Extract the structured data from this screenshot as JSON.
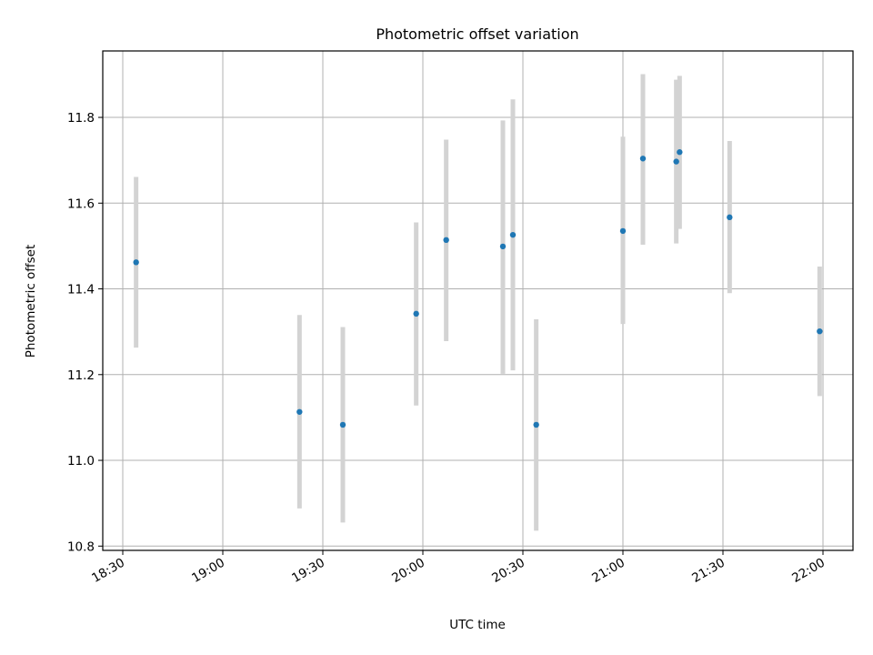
{
  "chart_data": {
    "type": "scatter",
    "title": "Photometric offset variation",
    "xlabel": "UTC time",
    "ylabel": "Photometric offset",
    "x_ticks": [
      "18:30",
      "19:00",
      "19:30",
      "20:00",
      "20:30",
      "21:00",
      "21:30",
      "22:00"
    ],
    "y_ticks": [
      "10.8",
      "11.0",
      "11.2",
      "11.4",
      "11.6",
      "11.8"
    ],
    "xlim": [
      "18:24",
      "22:09"
    ],
    "ylim": [
      10.79,
      11.955
    ],
    "grid": true,
    "colors": {
      "marker": "#1f77b4",
      "errorbar": "#d3d3d3"
    },
    "points": [
      {
        "x": "18:34",
        "y": 11.462,
        "yerr_low": 11.263,
        "yerr_high": 11.661
      },
      {
        "x": "19:23",
        "y": 11.113,
        "yerr_low": 10.888,
        "yerr_high": 11.339
      },
      {
        "x": "19:36",
        "y": 11.083,
        "yerr_low": 10.855,
        "yerr_high": 11.311
      },
      {
        "x": "19:58",
        "y": 11.342,
        "yerr_low": 11.128,
        "yerr_high": 11.555
      },
      {
        "x": "20:07",
        "y": 11.514,
        "yerr_low": 11.278,
        "yerr_high": 11.748
      },
      {
        "x": "20:24",
        "y": 11.499,
        "yerr_low": 11.202,
        "yerr_high": 11.793
      },
      {
        "x": "20:27",
        "y": 11.526,
        "yerr_low": 11.21,
        "yerr_high": 11.842
      },
      {
        "x": "20:34",
        "y": 11.083,
        "yerr_low": 10.836,
        "yerr_high": 11.329
      },
      {
        "x": "21:00",
        "y": 11.535,
        "yerr_low": 11.318,
        "yerr_high": 11.755
      },
      {
        "x": "21:06",
        "y": 11.704,
        "yerr_low": 11.503,
        "yerr_high": 11.901
      },
      {
        "x": "21:16",
        "y": 11.697,
        "yerr_low": 11.506,
        "yerr_high": 11.888
      },
      {
        "x": "21:17",
        "y": 11.719,
        "yerr_low": 11.54,
        "yerr_high": 11.897
      },
      {
        "x": "21:32",
        "y": 11.567,
        "yerr_low": 11.39,
        "yerr_high": 11.745
      },
      {
        "x": "21:59",
        "y": 11.301,
        "yerr_low": 11.15,
        "yerr_high": 11.452
      }
    ]
  }
}
